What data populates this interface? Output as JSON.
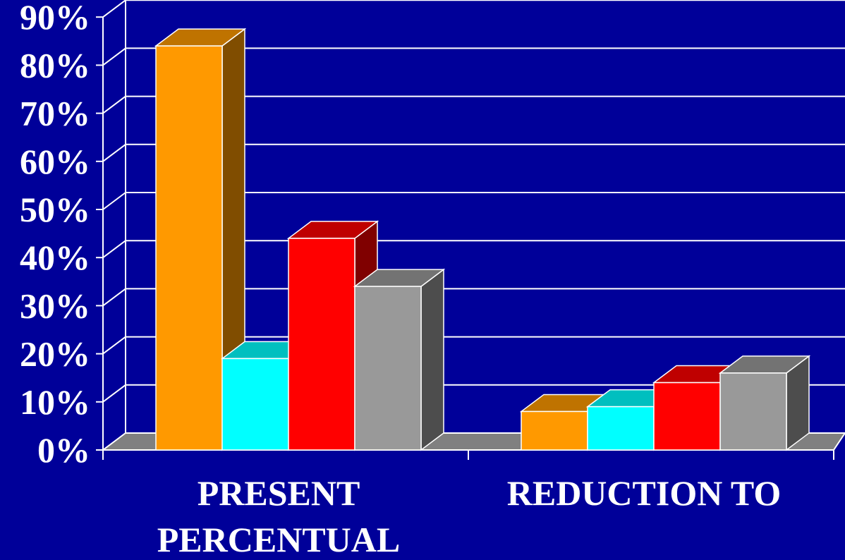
{
  "chart_data": {
    "type": "bar",
    "style": "3d-clustered-column",
    "categories": [
      "PRESENT PERCENTUAL",
      "REDUCTION TO"
    ],
    "category_label_lines": [
      [
        "PRESENT",
        "PERCENTUAL"
      ],
      [
        "REDUCTION TO"
      ]
    ],
    "series": [
      {
        "values": [
          84,
          8
        ],
        "color": "#ff9900"
      },
      {
        "values": [
          19,
          9
        ],
        "color": "#00ffff"
      },
      {
        "values": [
          44,
          14
        ],
        "color": "#ff0000"
      },
      {
        "values": [
          34,
          16
        ],
        "color": "#999999"
      }
    ],
    "y_ticks": [
      "0%",
      "10%",
      "20%",
      "30%",
      "40%",
      "50%",
      "60%",
      "70%",
      "80%",
      "90%"
    ],
    "ylim": [
      0,
      90
    ],
    "y_unit": "%",
    "grid": true,
    "legend": "none",
    "colors": {
      "background": "#000099",
      "grid": "#ffffff",
      "floor": "#808080",
      "text": "#ffffff"
    }
  }
}
